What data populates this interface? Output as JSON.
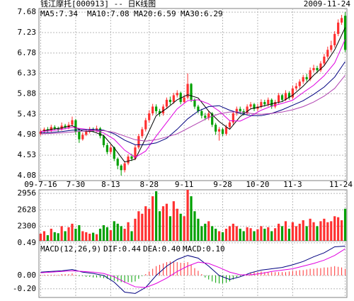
{
  "chart_data": [
    {
      "type": "candlestick",
      "title": "钱江摩托[000913] -- 日K线图",
      "subtitle": "2009-11-24",
      "categories": [
        "09-7-16",
        null,
        null,
        null,
        null,
        null,
        null,
        null,
        null,
        null,
        "7-30",
        null,
        null,
        null,
        null,
        null,
        null,
        null,
        null,
        null,
        "8-13",
        null,
        null,
        null,
        null,
        null,
        null,
        null,
        null,
        null,
        null,
        "8-28",
        null,
        null,
        null,
        null,
        null,
        null,
        null,
        null,
        null,
        "9-11",
        null,
        null,
        null,
        null,
        null,
        null,
        null,
        null,
        null,
        null,
        "9-28",
        null,
        null,
        null,
        null,
        null,
        null,
        null,
        null,
        null,
        "10-20",
        null,
        null,
        null,
        null,
        null,
        null,
        null,
        null,
        null,
        "11-3",
        null,
        null,
        null,
        null,
        null,
        null,
        null,
        null,
        null,
        null,
        null,
        null,
        null,
        null,
        "11-24"
      ],
      "open": [
        5.0,
        5.05,
        5.1,
        5.08,
        5.15,
        5.12,
        5.1,
        5.18,
        5.14,
        5.2,
        5.3,
        5.05,
        4.88,
        4.98,
        5.05,
        5.1,
        5.08,
        5.12,
        4.95,
        4.75,
        4.6,
        4.7,
        4.45,
        4.3,
        4.2,
        4.35,
        4.5,
        4.45,
        4.7,
        4.95,
        5.1,
        5.3,
        5.45,
        5.6,
        5.5,
        5.45,
        5.6,
        5.75,
        5.7,
        5.85,
        5.9,
        5.7,
        5.8,
        6.1,
        5.75,
        5.6,
        5.5,
        5.4,
        5.35,
        5.45,
        5.2,
        5.05,
        5.1,
        5.0,
        5.15,
        5.25,
        5.45,
        5.55,
        5.5,
        5.45,
        5.6,
        5.65,
        5.55,
        5.6,
        5.7,
        5.65,
        5.75,
        5.6,
        5.7,
        5.85,
        5.75,
        5.9,
        5.8,
        6.0,
        6.05,
        6.15,
        6.25,
        6.2,
        6.4,
        6.45,
        6.4,
        6.55,
        6.7,
        6.85,
        6.95,
        7.2,
        7.45,
        7.6
      ],
      "high": [
        5.1,
        5.14,
        5.15,
        5.2,
        5.19,
        5.16,
        5.25,
        5.22,
        5.26,
        5.38,
        5.33,
        5.08,
        5.03,
        5.1,
        5.15,
        5.14,
        5.18,
        5.15,
        4.98,
        4.8,
        4.76,
        4.72,
        4.48,
        4.33,
        4.4,
        4.55,
        4.56,
        4.75,
        5.0,
        5.15,
        5.35,
        5.52,
        5.66,
        5.65,
        5.55,
        5.65,
        5.8,
        5.82,
        5.9,
        5.96,
        5.93,
        5.86,
        6.33,
        6.12,
        5.78,
        5.64,
        5.55,
        5.46,
        5.5,
        5.48,
        5.24,
        5.15,
        5.14,
        5.2,
        5.3,
        5.5,
        5.6,
        5.6,
        5.55,
        5.65,
        5.7,
        5.68,
        5.66,
        5.76,
        5.75,
        5.8,
        5.78,
        5.75,
        5.9,
        5.88,
        5.96,
        5.94,
        6.06,
        6.12,
        6.2,
        6.3,
        6.32,
        6.46,
        6.52,
        6.5,
        6.6,
        6.76,
        6.92,
        7.05,
        7.26,
        7.52,
        7.62,
        7.68
      ],
      "low": [
        4.96,
        5.01,
        5.03,
        5.04,
        5.08,
        5.05,
        5.07,
        5.1,
        5.1,
        5.16,
        4.98,
        4.8,
        4.85,
        4.95,
        5.01,
        5.03,
        5.04,
        4.9,
        4.7,
        4.55,
        4.55,
        4.4,
        4.22,
        4.08,
        4.15,
        4.31,
        4.4,
        4.42,
        4.66,
        4.9,
        5.05,
        5.25,
        5.4,
        5.44,
        5.38,
        5.4,
        5.55,
        5.64,
        5.66,
        5.8,
        5.65,
        5.66,
        5.76,
        5.7,
        5.55,
        5.45,
        5.34,
        5.3,
        5.3,
        5.15,
        4.98,
        4.85,
        4.95,
        4.96,
        5.1,
        5.2,
        5.4,
        5.45,
        5.4,
        5.42,
        5.55,
        5.5,
        5.5,
        5.56,
        5.6,
        5.6,
        5.55,
        5.56,
        5.66,
        5.7,
        5.72,
        5.75,
        5.76,
        5.95,
        6.0,
        6.1,
        6.15,
        6.16,
        6.35,
        6.34,
        6.36,
        6.5,
        6.65,
        6.8,
        6.9,
        7.15,
        7.4,
        6.8
      ],
      "close": [
        5.05,
        5.1,
        5.08,
        5.15,
        5.12,
        5.1,
        5.18,
        5.14,
        5.2,
        5.3,
        5.05,
        4.88,
        4.98,
        5.05,
        5.1,
        5.08,
        5.12,
        4.95,
        4.75,
        4.6,
        4.7,
        4.45,
        4.3,
        4.2,
        4.35,
        4.5,
        4.45,
        4.7,
        4.95,
        5.1,
        5.3,
        5.45,
        5.6,
        5.5,
        5.45,
        5.6,
        5.75,
        5.7,
        5.85,
        5.9,
        5.7,
        5.8,
        6.1,
        5.75,
        5.6,
        5.5,
        5.4,
        5.35,
        5.45,
        5.2,
        5.05,
        5.1,
        5.0,
        5.15,
        5.25,
        5.45,
        5.55,
        5.5,
        5.45,
        5.6,
        5.65,
        5.55,
        5.6,
        5.7,
        5.65,
        5.75,
        5.6,
        5.7,
        5.85,
        5.75,
        5.9,
        5.8,
        6.0,
        6.05,
        6.15,
        6.25,
        6.2,
        6.4,
        6.45,
        6.4,
        6.55,
        6.7,
        6.85,
        6.95,
        7.2,
        7.45,
        7.55,
        6.85
      ],
      "up_color": "#ff3030",
      "down_color": "#00a000",
      "lines": [
        {
          "name": "MA5:7.34",
          "color": "#000000",
          "x": [
            0,
            3,
            6,
            9,
            12,
            15,
            18,
            21,
            24,
            27,
            30,
            33,
            36,
            39,
            42,
            45,
            48,
            51,
            54,
            57,
            60,
            63,
            66,
            69,
            72,
            75,
            78,
            81,
            84,
            87
          ],
          "values": [
            5.05,
            5.1,
            5.13,
            5.18,
            5.06,
            5.05,
            4.96,
            4.69,
            4.38,
            4.44,
            4.9,
            5.4,
            5.56,
            5.75,
            5.86,
            5.79,
            5.5,
            5.27,
            5.1,
            5.38,
            5.55,
            5.6,
            5.66,
            5.71,
            5.85,
            6.05,
            6.29,
            6.5,
            6.85,
            7.34
          ]
        },
        {
          "name": "MA10:7.08",
          "color": "#e000e0",
          "x": [
            0,
            3,
            6,
            9,
            12,
            15,
            18,
            21,
            24,
            27,
            30,
            33,
            36,
            39,
            42,
            45,
            48,
            51,
            54,
            57,
            60,
            63,
            66,
            69,
            72,
            75,
            78,
            81,
            84,
            87
          ],
          "values": [
            5.05,
            5.07,
            5.1,
            5.14,
            5.11,
            5.08,
            5.02,
            4.88,
            4.64,
            4.48,
            4.62,
            4.95,
            5.25,
            5.55,
            5.73,
            5.75,
            5.66,
            5.5,
            5.29,
            5.28,
            5.39,
            5.52,
            5.61,
            5.67,
            5.74,
            5.91,
            6.07,
            6.28,
            6.56,
            7.08
          ]
        },
        {
          "name": "MA20:6.59",
          "color": "#000080",
          "x": [
            0,
            3,
            6,
            9,
            12,
            15,
            18,
            21,
            24,
            27,
            30,
            33,
            36,
            39,
            42,
            45,
            48,
            51,
            54,
            57,
            60,
            63,
            66,
            69,
            72,
            75,
            78,
            81,
            84,
            87
          ],
          "values": [
            5.02,
            5.03,
            5.05,
            5.08,
            5.09,
            5.1,
            5.08,
            5.0,
            4.86,
            4.76,
            4.76,
            4.8,
            4.9,
            5.1,
            5.33,
            5.5,
            5.6,
            5.62,
            5.52,
            5.45,
            5.4,
            5.4,
            5.45,
            5.53,
            5.63,
            5.73,
            5.87,
            6.03,
            6.25,
            6.59
          ]
        },
        {
          "name": "MA30:6.29",
          "color": "#b040b0",
          "x": [
            0,
            3,
            6,
            9,
            12,
            15,
            18,
            21,
            24,
            27,
            30,
            33,
            36,
            39,
            42,
            45,
            48,
            51,
            54,
            57,
            60,
            63,
            66,
            69,
            72,
            75,
            78,
            81,
            84,
            87
          ],
          "values": [
            5.0,
            5.01,
            5.02,
            5.04,
            5.06,
            5.07,
            5.07,
            5.03,
            4.95,
            4.87,
            4.84,
            4.87,
            4.93,
            5.0,
            5.12,
            5.24,
            5.36,
            5.44,
            5.48,
            5.48,
            5.45,
            5.43,
            5.45,
            5.48,
            5.53,
            5.6,
            5.7,
            5.83,
            6.0,
            6.29
          ]
        }
      ],
      "ylim": [
        3.97,
        7.76
      ],
      "yticks": [
        7.68,
        7.23,
        6.78,
        6.33,
        5.88,
        5.43,
        4.98,
        4.53,
        4.08
      ],
      "grid": true
    },
    {
      "type": "volume",
      "values": [
        2150,
        2200,
        2120,
        2250,
        2180,
        2160,
        2300,
        2200,
        2280,
        2350,
        2250,
        2320,
        2200,
        2180,
        2150,
        2170,
        2140,
        2250,
        2320,
        2280,
        2220,
        2400,
        2350,
        2300,
        2250,
        2380,
        2200,
        2450,
        2600,
        2550,
        2700,
        2650,
        2900,
        3000,
        2600,
        2700,
        2750,
        2500,
        2800,
        2650,
        2550,
        2500,
        3100,
        2900,
        2600,
        2450,
        2300,
        2350,
        2400,
        2300,
        2250,
        2200,
        2180,
        2250,
        2300,
        2350,
        2300,
        2250,
        2200,
        2280,
        2260,
        2200,
        2240,
        2300,
        2250,
        2280,
        2200,
        2260,
        2350,
        2300,
        2400,
        2250,
        2380,
        2300,
        2350,
        2420,
        2300,
        2450,
        2380,
        2300,
        2400,
        2450,
        2380,
        2400,
        2500,
        2480,
        2420,
        2650
      ],
      "ylim": [
        2008,
        3029
      ],
      "yticks": [
        2956,
        2628,
        2300
      ],
      "grid": true
    },
    {
      "type": "macd",
      "title": "MACD(12,26,9)",
      "bars": {
        "name": "MACD:0.10",
        "color": "#000080",
        "up_color": "#ff3030",
        "down_color": "#00a000",
        "values": [
          0.01,
          0.01,
          0.01,
          0.01,
          0.01,
          0.01,
          0.02,
          0.02,
          0.02,
          0.03,
          0.01,
          -0.01,
          -0.01,
          -0.02,
          -0.02,
          -0.03,
          -0.03,
          -0.03,
          -0.04,
          -0.05,
          -0.06,
          -0.08,
          -0.09,
          -0.1,
          -0.11,
          -0.1,
          -0.1,
          -0.09,
          -0.05,
          -0.01,
          0.02,
          0.06,
          0.1,
          0.14,
          0.16,
          0.18,
          0.2,
          0.21,
          0.21,
          0.2,
          0.19,
          0.19,
          0.2,
          0.16,
          0.11,
          0.07,
          0.02,
          -0.03,
          -0.06,
          -0.09,
          -0.11,
          -0.12,
          -0.12,
          -0.11,
          -0.09,
          -0.06,
          -0.03,
          -0.01,
          0.01,
          0.02,
          0.04,
          0.05,
          0.05,
          0.06,
          0.05,
          0.05,
          0.05,
          0.05,
          0.05,
          0.05,
          0.05,
          0.06,
          0.07,
          0.07,
          0.08,
          0.08,
          0.09,
          0.1,
          0.1,
          0.11,
          0.11,
          0.12,
          0.12,
          0.13,
          0.14,
          0.13,
          0.12,
          0.1
        ]
      },
      "lines": [
        {
          "name": "DIF:0.44",
          "color": "#000080",
          "x": [
            0,
            3,
            6,
            9,
            12,
            15,
            18,
            21,
            24,
            27,
            30,
            33,
            36,
            39,
            42,
            45,
            48,
            51,
            54,
            57,
            60,
            63,
            66,
            69,
            72,
            75,
            78,
            81,
            84,
            87
          ],
          "values": [
            0.05,
            0.06,
            0.07,
            0.09,
            0.05,
            0.03,
            0.0,
            -0.1,
            -0.25,
            -0.27,
            -0.18,
            0.0,
            0.14,
            0.24,
            0.3,
            0.26,
            0.14,
            0.0,
            -0.06,
            -0.02,
            0.04,
            0.08,
            0.1,
            0.12,
            0.16,
            0.21,
            0.28,
            0.34,
            0.43,
            0.44
          ]
        },
        {
          "name": "DEA:0.40",
          "color": "#e000e0",
          "x": [
            0,
            3,
            6,
            9,
            12,
            15,
            18,
            21,
            24,
            27,
            30,
            33,
            36,
            39,
            42,
            45,
            48,
            51,
            54,
            57,
            60,
            63,
            66,
            69,
            72,
            75,
            78,
            81,
            84,
            87
          ],
          "values": [
            0.04,
            0.05,
            0.06,
            0.07,
            0.06,
            0.05,
            0.03,
            -0.02,
            -0.1,
            -0.17,
            -0.18,
            -0.12,
            -0.04,
            0.06,
            0.14,
            0.2,
            0.18,
            0.12,
            0.05,
            0.01,
            0.01,
            0.03,
            0.06,
            0.08,
            0.1,
            0.14,
            0.18,
            0.23,
            0.3,
            0.4
          ]
        }
      ],
      "ylim": [
        -0.33,
        0.52
      ],
      "yticks": [
        0.49,
        {
          "value": 0,
          "label": "0.00"
        },
        {
          "value": -0.2,
          "label": "-0.20"
        }
      ],
      "grid": true
    }
  ]
}
